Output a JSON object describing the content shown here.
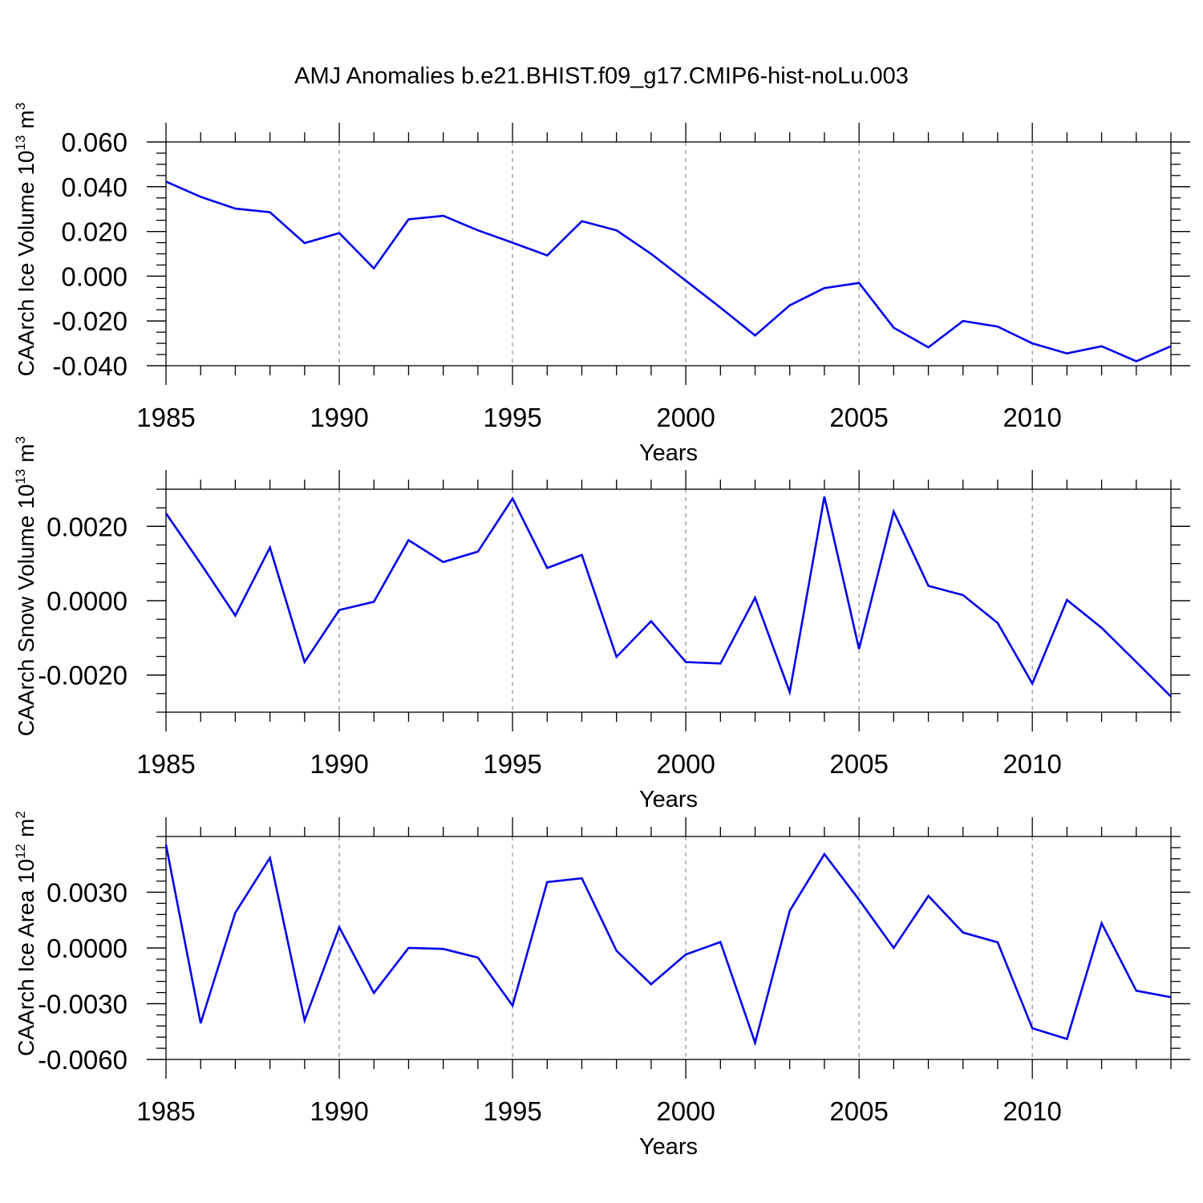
{
  "title": "AMJ Anomalies b.e21.BHIST.f09_g17.CMIP6-hist-noLu.003",
  "colors": {
    "series": "#0000ee",
    "frame": "#000000",
    "grid": "#999999",
    "background": "#ffffff"
  },
  "chart_data": [
    {
      "type": "line",
      "title": "AMJ Anomalies b.e21.BHIST.f09_g17.CMIP6-hist-noLu.003",
      "xlabel": "Years",
      "ylabel": "CAArch Ice Volume 10",
      "ylabel_exp": "13",
      "ylabel_unit": "m",
      "ylabel_unit_exp": "3",
      "xlim": [
        1985,
        2014
      ],
      "ylim": [
        -0.04,
        0.06
      ],
      "xticks": [
        1985,
        1990,
        1995,
        2000,
        2005,
        2010
      ],
      "xtick_labels": [
        "1985",
        "1990",
        "1995",
        "2000",
        "2005",
        "2010"
      ],
      "yticks": [
        -0.04,
        -0.02,
        0.0,
        0.02,
        0.04,
        0.06
      ],
      "ytick_labels": [
        "-0.040",
        "-0.020",
        "0.000",
        "0.020",
        "0.040",
        "0.060"
      ],
      "yminor_step": 0.005,
      "grid": "vertical-dashed",
      "x": [
        1985,
        1986,
        1987,
        1988,
        1989,
        1990,
        1991,
        1992,
        1993,
        1994,
        1995,
        1996,
        1997,
        1998,
        1999,
        2000,
        2001,
        2002,
        2003,
        2004,
        2005,
        2006,
        2007,
        2008,
        2009,
        2010,
        2011,
        2012,
        2013,
        2014
      ],
      "series": [
        {
          "name": "CAArch Ice Volume",
          "values": [
            0.0423,
            0.0355,
            0.0302,
            0.0286,
            0.0148,
            0.0193,
            0.0035,
            0.0254,
            0.027,
            0.0205,
            0.015,
            0.0093,
            0.0246,
            0.0205,
            0.01,
            -0.002,
            -0.014,
            -0.0265,
            -0.013,
            -0.0053,
            -0.003,
            -0.023,
            -0.0318,
            -0.02,
            -0.0225,
            -0.03,
            -0.0345,
            -0.0313,
            -0.038,
            -0.0313
          ]
        }
      ]
    },
    {
      "type": "line",
      "xlabel": "Years",
      "ylabel": "CAArch Snow Volume 10",
      "ylabel_exp": "13",
      "ylabel_unit": "m",
      "ylabel_unit_exp": "3",
      "xlim": [
        1985,
        2014
      ],
      "ylim": [
        -0.003,
        0.003
      ],
      "xticks": [
        1985,
        1990,
        1995,
        2000,
        2005,
        2010
      ],
      "xtick_labels": [
        "1985",
        "1990",
        "1995",
        "2000",
        "2005",
        "2010"
      ],
      "yticks": [
        -0.002,
        0.0,
        0.002
      ],
      "ytick_labels": [
        "-0.0020",
        "0.0000",
        "0.0020"
      ],
      "yminor_step": 0.0005,
      "grid": "vertical-dashed",
      "x": [
        1985,
        1986,
        1987,
        1988,
        1989,
        1990,
        1991,
        1992,
        1993,
        1994,
        1995,
        1996,
        1997,
        1998,
        1999,
        2000,
        2001,
        2002,
        2003,
        2004,
        2005,
        2006,
        2007,
        2008,
        2009,
        2010,
        2011,
        2012,
        2013,
        2014
      ],
      "series": [
        {
          "name": "CAArch Snow Volume",
          "values": [
            0.00235,
            0.001,
            -0.0004,
            0.00143,
            -0.00165,
            -0.00025,
            -3e-05,
            0.00163,
            0.00104,
            0.00132,
            0.00275,
            0.00088,
            0.00123,
            -0.00151,
            -0.00055,
            -0.00165,
            -0.00169,
            8e-05,
            -0.00246,
            0.0028,
            -0.0013,
            0.0024,
            0.0004,
            0.00015,
            -0.0006,
            -0.00223,
            2e-05,
            -0.00073,
            -0.00165,
            -0.00258
          ]
        }
      ]
    },
    {
      "type": "line",
      "xlabel": "Years",
      "ylabel": "CAArch Ice Area 10",
      "ylabel_exp": "12",
      "ylabel_unit": "m",
      "ylabel_unit_exp": "2",
      "xlim": [
        1985,
        2014
      ],
      "ylim": [
        -0.006,
        0.006
      ],
      "xticks": [
        1985,
        1990,
        1995,
        2000,
        2005,
        2010
      ],
      "xtick_labels": [
        "1985",
        "1990",
        "1995",
        "2000",
        "2005",
        "2010"
      ],
      "yticks": [
        -0.006,
        -0.003,
        0.0,
        0.003
      ],
      "ytick_labels": [
        "-0.0060",
        "-0.0030",
        "0.0000",
        "0.0030"
      ],
      "yminor_step": 0.0006,
      "grid": "vertical-dashed",
      "x": [
        1985,
        1986,
        1987,
        1988,
        1989,
        1990,
        1991,
        1992,
        1993,
        1994,
        1995,
        1996,
        1997,
        1998,
        1999,
        2000,
        2001,
        2002,
        2003,
        2004,
        2005,
        2006,
        2007,
        2008,
        2009,
        2010,
        2011,
        2012,
        2013,
        2014
      ],
      "series": [
        {
          "name": "CAArch Ice Area",
          "values": [
            0.00555,
            -0.00405,
            0.0019,
            0.00485,
            -0.0039,
            0.00112,
            -0.00242,
            0.0,
            -5e-05,
            -0.00052,
            -0.0031,
            0.00355,
            0.00375,
            -0.00015,
            -0.00195,
            -0.00035,
            0.00032,
            -0.0051,
            0.002,
            0.00505,
            0.0026,
            0.0,
            0.0028,
            0.00083,
            0.0003,
            -0.00432,
            -0.0049,
            0.00133,
            -0.0023,
            -0.00265
          ]
        }
      ]
    }
  ]
}
